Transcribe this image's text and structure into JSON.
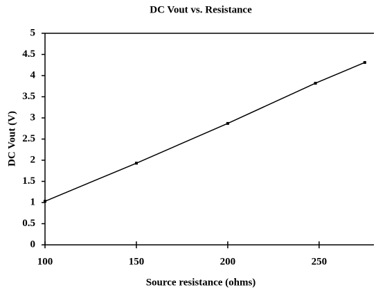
{
  "chart_data": {
    "type": "line",
    "title": "DC Vout vs. Resistance",
    "x_label": "Source resistance (ohms)",
    "y_label": "DC Vout (V)",
    "series": [
      {
        "name": "DC Vout",
        "color": "#000000",
        "x": [
          100,
          150,
          200,
          248,
          275
        ],
        "values": [
          1.03,
          1.93,
          2.87,
          3.82,
          4.31
        ]
      }
    ],
    "xlim": [
      100,
      280
    ],
    "xticks": [
      100,
      150,
      200,
      250
    ],
    "ylim": [
      0,
      5
    ],
    "yticks": [
      0,
      0.5,
      1,
      1.5,
      2,
      2.5,
      3,
      3.5,
      4,
      4.5,
      5
    ],
    "grid": false
  }
}
